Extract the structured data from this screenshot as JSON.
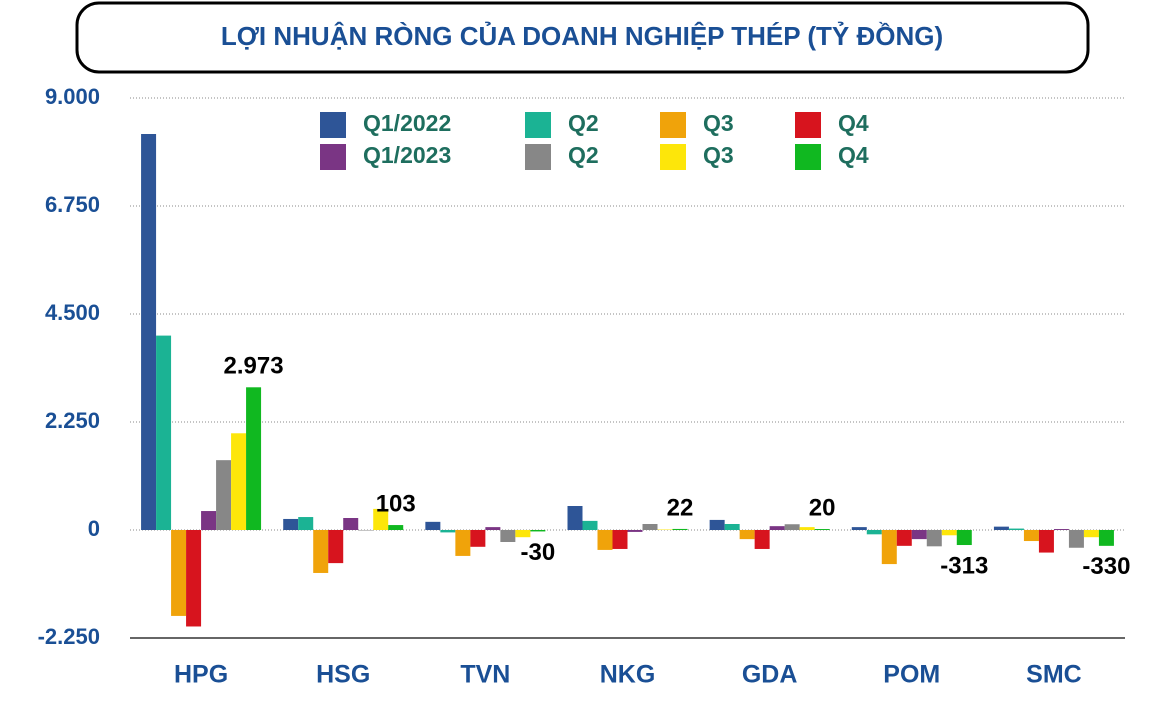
{
  "chart_data": {
    "type": "bar",
    "title": "LỢI NHUẬN RÒNG CỦA DOANH NGHIỆP THÉP (TỶ ĐỒNG)",
    "categories": [
      "HPG",
      "HSG",
      "TVN",
      "NKG",
      "GDA",
      "POM",
      "SMC"
    ],
    "series": [
      {
        "name": "Q1/2022",
        "color": "#2e5597",
        "values": [
          8250,
          230,
          170,
          500,
          210,
          60,
          70
        ]
      },
      {
        "name": "Q2",
        "color": "#1bb394",
        "values": [
          4050,
          270,
          -50,
          190,
          125,
          -90,
          30
        ]
      },
      {
        "name": "Q3",
        "color": "#f0a30a",
        "values": [
          -1790,
          -895,
          -540,
          -415,
          -190,
          -710,
          -230
        ]
      },
      {
        "name": "Q4",
        "color": "#d7141e",
        "values": [
          -2010,
          -690,
          -350,
          -395,
          -395,
          -330,
          -470
        ]
      },
      {
        "name": "Q1/2023",
        "color": "#7a3584",
        "values": [
          395,
          250,
          60,
          -40,
          80,
          -190,
          20
        ]
      },
      {
        "name": "Q2",
        "color": "#878787",
        "values": [
          1455,
          -10,
          -250,
          125,
          120,
          -340,
          -370
        ]
      },
      {
        "name": "Q3",
        "color": "#fde60a",
        "values": [
          2015,
          440,
          -150,
          10,
          60,
          -110,
          -150
        ]
      },
      {
        "name": "Q4",
        "color": "#10b820",
        "values": [
          2973,
          103,
          -30,
          22,
          20,
          -313,
          -330
        ],
        "value_labels": [
          "2.973",
          "103",
          "-30",
          "22",
          "20",
          "-313",
          "-330"
        ]
      }
    ],
    "ylim": [
      -2250,
      9000
    ],
    "yticks": [
      {
        "value": -2250,
        "label": "-2.250"
      },
      0,
      {
        "value": 2250,
        "label": "2.250"
      },
      {
        "value": 4500,
        "label": "4.500"
      },
      {
        "value": 6750,
        "label": "6.750"
      },
      {
        "value": 9000,
        "label": "9.000"
      }
    ],
    "grid": true
  }
}
